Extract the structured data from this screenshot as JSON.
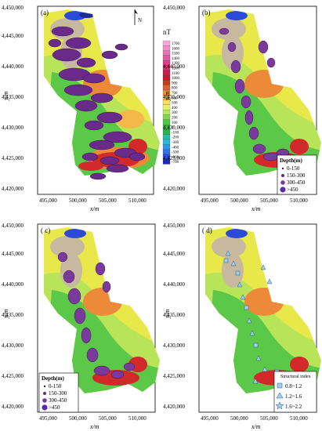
{
  "panels": [
    {
      "label": "(a)",
      "legend": "colorbar"
    },
    {
      "label": "(b)",
      "legend": "depth"
    },
    {
      "label": "( c)",
      "legend": "depth"
    },
    {
      "label": "( d)",
      "legend": "structural"
    }
  ],
  "axes": {
    "xlabel": "x/m",
    "ylabel": "y/m",
    "x_ticks": [
      "495,000",
      "500,000",
      "505,000",
      "510,000"
    ],
    "y_ticks": [
      "4,450,000",
      "4,445,000",
      "4,440,000",
      "4,435,000",
      "4,430,000",
      "4,425,000",
      "4,420,000"
    ]
  },
  "north": {
    "label": "N"
  },
  "colorbar": {
    "unit": "nT",
    "ticks": [
      "1700",
      "1600",
      "1500",
      "1400",
      "1300",
      "1200",
      "1100",
      "1000",
      "900",
      "800",
      "700",
      "600",
      "500",
      "400",
      "300",
      "200",
      "100",
      "0",
      "-100",
      "-200",
      "-300",
      "-400",
      "-500",
      "-600",
      "-700"
    ],
    "colors": [
      "#f7a8d8",
      "#f08cc8",
      "#e874b4",
      "#df5aa0",
      "#d8408a",
      "#d02c70",
      "#c81e4e",
      "#c01c2c",
      "#c83a1c",
      "#d8642a",
      "#e8903a",
      "#f4b84a",
      "#f8dc5c",
      "#e8f06a",
      "#b8e85e",
      "#80d850",
      "#4cc844",
      "#32b43a",
      "#28b44a",
      "#28bca0",
      "#28b8d8",
      "#2c98e8",
      "#3070e8",
      "#2c48d8",
      "#1c2cb8"
    ]
  },
  "legend_depth": {
    "title": "Depth(m)",
    "items": [
      {
        "label": "0-150",
        "color": "#3a1a4a"
      },
      {
        "label": "150-300",
        "color": "#6a2a7a"
      },
      {
        "label": "300-450",
        "color": "#7a3a9c"
      },
      {
        "label": ">450",
        "color": "#5a2aa8"
      }
    ]
  },
  "legend_structural": {
    "title": "Structural index",
    "items": [
      {
        "label": "0.8~1.2",
        "shape": "square"
      },
      {
        "label": "1.2~1.6",
        "shape": "triangle"
      },
      {
        "label": "1.6~2.2",
        "shape": "star"
      }
    ],
    "color": "#9dcff0"
  },
  "map_colors": {
    "yellow": "#e8e84a",
    "light_green": "#b8e45a",
    "green": "#5cc848",
    "red": "#d22a2a",
    "orange": "#ec8a3a",
    "blue": "#2c4ad8",
    "dark_blue": "#1c2c9c",
    "gray": "#c8b8a0"
  }
}
